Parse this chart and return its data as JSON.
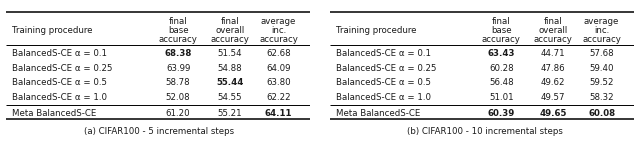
{
  "table_a": {
    "caption": "(a) CIFAR100 - 5 incremental steps",
    "col_headers": [
      "Training procedure",
      "final\nbase\naccuracy",
      "final\noverall\naccuracy",
      "average\ninc.\naccuracy"
    ],
    "rows": [
      [
        "BalancedS-CE α = 0.1",
        "68.38",
        "51.54",
        "62.68"
      ],
      [
        "BalancedS-CE α = 0.25",
        "63.99",
        "54.88",
        "64.09"
      ],
      [
        "BalancedS-CE α = 0.5",
        "58.78",
        "55.44",
        "63.80"
      ],
      [
        "BalancedS-CE α = 1.0",
        "52.08",
        "54.55",
        "62.22"
      ]
    ],
    "last_row": [
      "Meta BalancedS-CE",
      "61.20",
      "55.21",
      "64.11"
    ],
    "bold_data": [
      [
        0,
        1
      ],
      [
        2,
        2
      ]
    ],
    "bold_last": [
      3
    ]
  },
  "table_b": {
    "caption": "(b) CIFAR100 - 10 incremental steps",
    "col_headers": [
      "Training procedure",
      "final\nbase\naccuracy",
      "final\noverall\naccuracy",
      "average\ninc.\naccuracy"
    ],
    "rows": [
      [
        "BalancedS-CE α = 0.1",
        "63.43",
        "44.71",
        "57.68"
      ],
      [
        "BalancedS-CE α = 0.25",
        "60.28",
        "47.86",
        "59.40"
      ],
      [
        "BalancedS-CE α = 0.5",
        "56.48",
        "49.62",
        "59.52"
      ],
      [
        "BalancedS-CE α = 1.0",
        "51.01",
        "49.57",
        "58.32"
      ]
    ],
    "last_row": [
      "Meta BalancedS-CE",
      "60.39",
      "49.65",
      "60.08"
    ],
    "bold_data": [
      [
        0,
        1
      ]
    ],
    "bold_last": [
      1,
      2,
      3
    ]
  },
  "font_size": 6.2,
  "bg_color": "#ffffff",
  "text_color": "#1a1a1a"
}
